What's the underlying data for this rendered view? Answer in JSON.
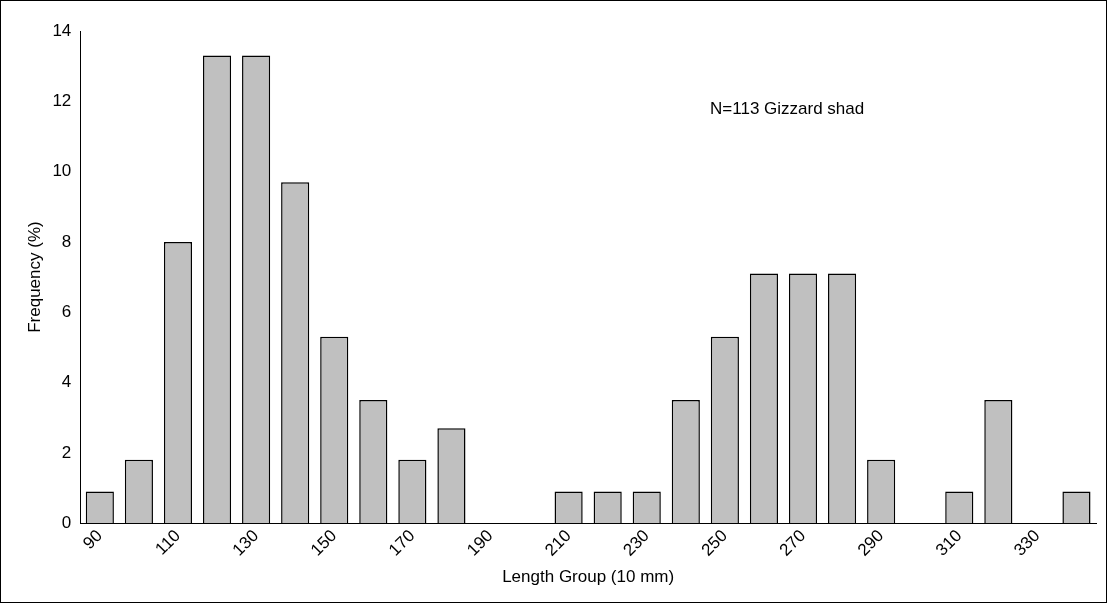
{
  "chart_data": {
    "type": "bar",
    "xlabel": "Length Group (10 mm)",
    "ylabel": "Frequency (%)",
    "annotations": [
      "N=113 Gizzard shad"
    ],
    "categories": [
      "90",
      null,
      "110",
      null,
      "130",
      null,
      "150",
      null,
      "170",
      null,
      "190",
      null,
      "210",
      null,
      "230",
      null,
      "250",
      null,
      "270",
      null,
      "290",
      null,
      "310",
      null,
      "330",
      null
    ],
    "values": [
      0.9,
      1.8,
      8,
      13.3,
      13.3,
      9.7,
      5.3,
      3.5,
      1.8,
      2.7,
      0,
      0,
      0.9,
      0.9,
      0.9,
      3.5,
      5.3,
      7.1,
      7.1,
      7.1,
      1.8,
      0,
      0.9,
      3.5,
      0,
      0.9
    ],
    "color": "#c0c0c0",
    "ylim": [
      0,
      14
    ],
    "yticks": [
      0,
      2,
      4,
      6,
      8,
      10,
      12,
      14
    ],
    "grid": false,
    "legend": false
  }
}
